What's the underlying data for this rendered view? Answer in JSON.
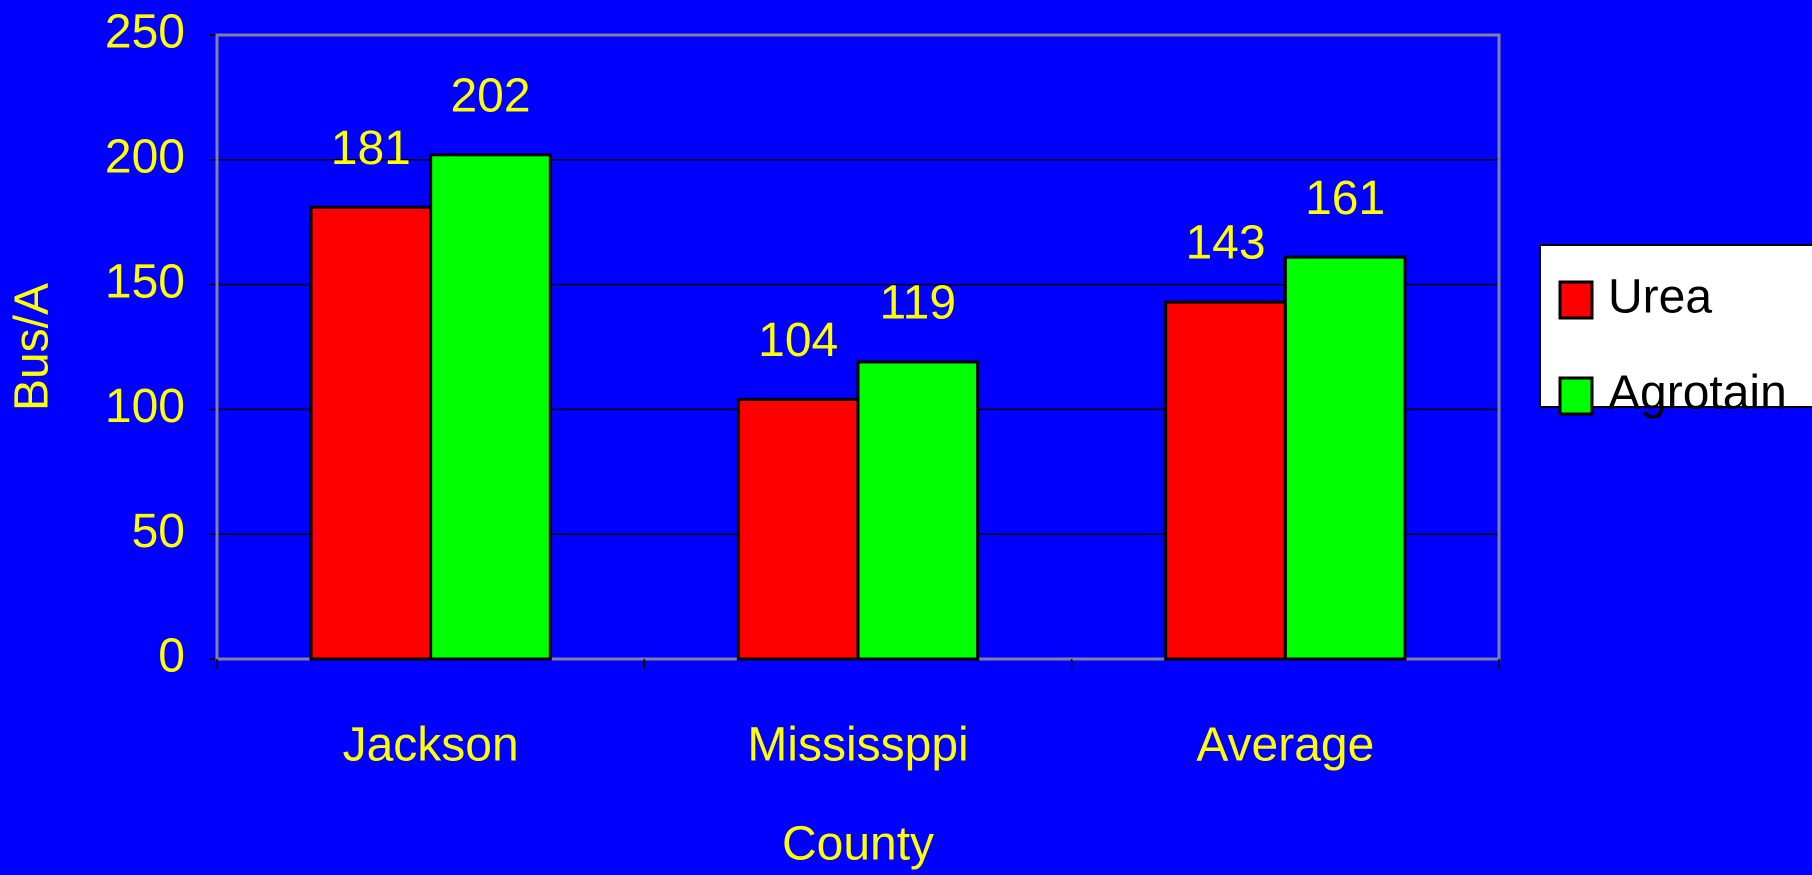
{
  "chart_data": {
    "type": "bar",
    "categories": [
      "Jackson",
      "Mississppi",
      "Average"
    ],
    "series": [
      {
        "name": "Urea",
        "color": "#ff0000",
        "values": [
          181,
          104,
          143
        ]
      },
      {
        "name": "Agrotain",
        "color": "#00ff00",
        "values": [
          202,
          119,
          161
        ]
      }
    ],
    "ylim": [
      0,
      250
    ],
    "yticks": [
      0,
      50,
      100,
      150,
      200,
      250
    ],
    "ylabel": "Bus/A",
    "xlabel": "County",
    "grid": true,
    "legend": "right"
  }
}
